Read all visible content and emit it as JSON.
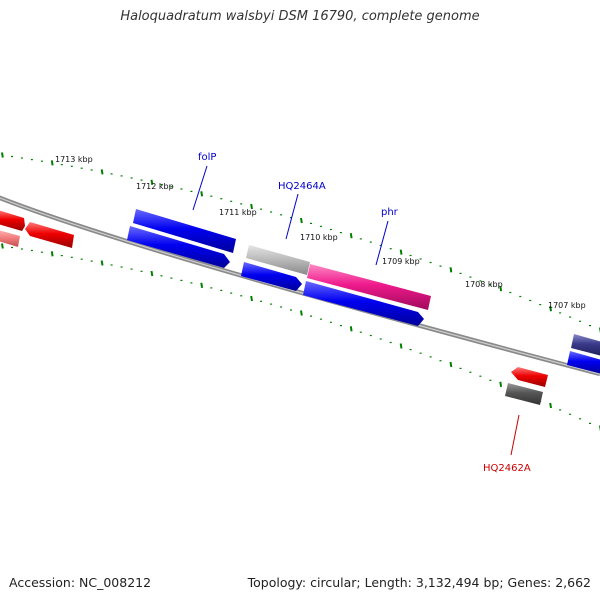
{
  "title": "Haloquadratum walsbyi DSM 16790, complete genome",
  "footer": {
    "accession": "Accession: NC_008212",
    "summary": "Topology: circular; Length: 3,132,494 bp; Genes: 2,662"
  },
  "scale_labels": [
    "1713 kbp",
    "1712 kbp",
    "1711 kbp",
    "1710 kbp",
    "1709 kbp",
    "1708 kbp",
    "1707 kbp"
  ],
  "gene_labels": [
    {
      "name": "folP",
      "color": "#0000cc"
    },
    {
      "name": "HQ2464A",
      "color": "#0000cc"
    },
    {
      "name": "phr",
      "color": "#0000cc"
    },
    {
      "name": "HQ2462A",
      "color": "#cc0000"
    }
  ],
  "colors": {
    "backbone": "#7a7a7a",
    "ticks": "#008000",
    "forward_gene": "#0000ee",
    "reverse_gene": "#ee0000",
    "highlight_gene": "#ee1a8c",
    "gray_gene": "#b4b4b4",
    "dark_gray_gene": "#555555",
    "navy_gene": "#3a3a8a"
  }
}
